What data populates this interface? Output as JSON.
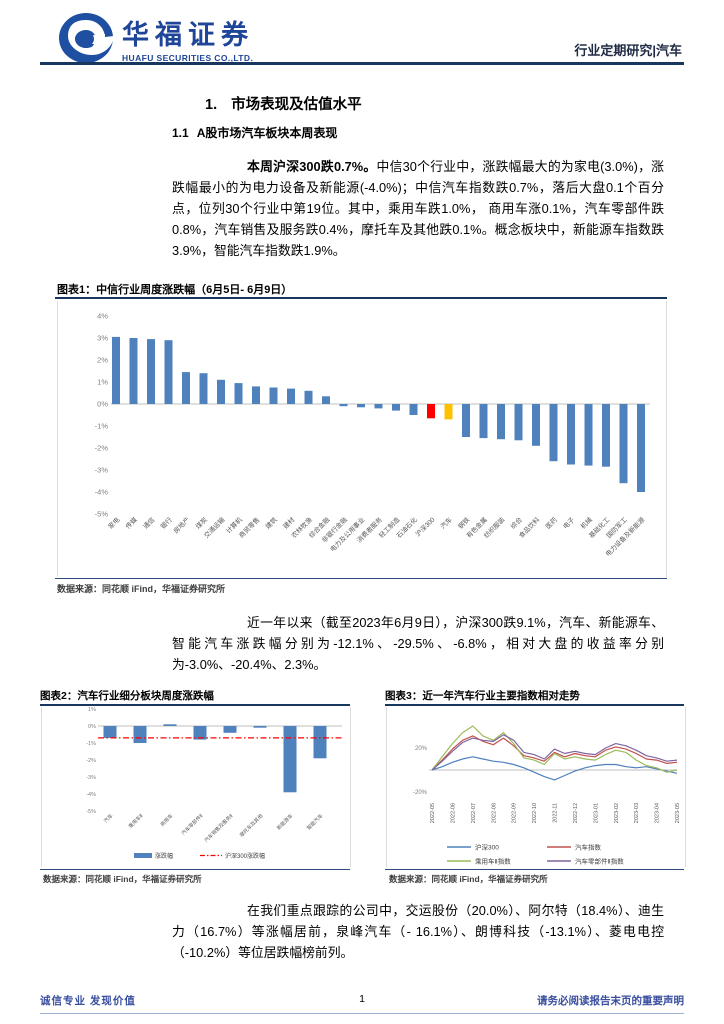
{
  "header": {
    "logo_title": "华福证券",
    "logo_subtitle": "HUAFU SECURITIES CO.,LTD.",
    "right_text": "行业定期研究|汽车"
  },
  "headings": {
    "h1_num": "1.",
    "h1_text": "市场表现及估值水平",
    "h2_num": "1.1",
    "h2_text": "A股市场汽车板块本周表现"
  },
  "paragraphs": {
    "p1_bold": "本周沪深300跌0.7%。",
    "p1_rest": "中信30个行业中，涨跌幅最大的为家电(3.0%)，涨跌幅最小的为电力设备及新能源(-4.0%)；中信汽车指数跌0.7%，落后大盘0.1个百分点，位列30个行业中第19位。其中，乘用车跌1.0%， 商用车涨0.1%，汽车零部件跌0.8%，汽车销售及服务跌0.4%，摩托车及其他跌0.1%。概念板块中，新能源车指数跌3.9%，智能汽车指数跌1.9%。",
    "p2": "近一年以来（截至2023年6月9日），沪深300跌9.1%，汽车、新能源车、智能汽车涨跌幅分别为-12.1%、-29.5%、-6.8%，相对大盘的收益率分别为-3.0%、-20.4%、2.3%。",
    "p3": "在我们重点跟踪的公司中，交运股份（20.0%）、阿尔特（18.4%）、迪生力（16.7%）等涨幅居前，泉峰汽车（- 16.1%）、朗博科技（-13.1%）、菱电电控（-10.2%）等位居跌幅榜前列。"
  },
  "figure1": {
    "title": "图表1：中信行业周度涨跌幅（6月5日- 6月9日）",
    "source": "数据来源：同花顺 iFind，华福证券研究所"
  },
  "figure2": {
    "title": "图表2：汽车行业细分板块周度涨跌幅",
    "source": "数据来源：同花顺 iFind，华福证券研究所"
  },
  "figure3": {
    "title": "图表3：近一年汽车行业主要指数相对走势",
    "source": "数据来源：同花顺 iFind，华福证券研究所"
  },
  "footer": {
    "left": "诚信专业  发现价值",
    "page": "1",
    "right": "请务必阅读报告末页的重要声明"
  },
  "chart_data": [
    {
      "type": "bar",
      "title": "中信行业周度涨跌幅（6月5日- 6月9日）",
      "categories": [
        "家电",
        "传媒",
        "通信",
        "银行",
        "房地产",
        "煤炭",
        "交通运输",
        "计算机",
        "商贸零售",
        "建筑",
        "建材",
        "农林牧渔",
        "综合金融",
        "非银行金融",
        "电力及公用事业",
        "消费者服务",
        "轻工制造",
        "石油石化",
        "沪深300",
        "汽车",
        "钢铁",
        "有色金属",
        "纺织服装",
        "综合",
        "食品饮料",
        "医药",
        "电子",
        "机械",
        "基础化工",
        "国防军工",
        "电力设备及新能源"
      ],
      "values": [
        3.05,
        3.0,
        2.95,
        2.9,
        1.45,
        1.4,
        1.1,
        0.95,
        0.8,
        0.75,
        0.7,
        0.6,
        0.35,
        -0.1,
        -0.15,
        -0.2,
        -0.3,
        -0.5,
        -0.65,
        -0.7,
        -1.5,
        -1.55,
        -1.6,
        -1.65,
        -1.9,
        -2.6,
        -2.75,
        -2.8,
        -2.85,
        -3.6,
        -4.0
      ],
      "bar_color": "#4F81BD",
      "highlights": [
        {
          "index": 18,
          "color": "#FF0000",
          "category": "沪深300"
        },
        {
          "index": 19,
          "color": "#FFC000",
          "category": "汽车"
        }
      ],
      "yticks": [
        "4%",
        "3%",
        "2%",
        "1%",
        "0%",
        "-1%",
        "-2%",
        "-3%",
        "-4%",
        "-5%"
      ],
      "ylim": [
        -5,
        4
      ],
      "grid": false,
      "legend_position": "none"
    },
    {
      "type": "bar",
      "title": "汽车行业细分板块周度涨跌幅",
      "categories": [
        "汽车",
        "乘用车Ⅱ",
        "商用车",
        "汽车零部件Ⅱ",
        "汽车销售及服务Ⅱ",
        "摩托车及其他",
        "新能源车",
        "智能汽车"
      ],
      "values": [
        -0.7,
        -1.0,
        0.1,
        -0.8,
        -0.4,
        -0.1,
        -3.9,
        -1.9
      ],
      "bar_color": "#4F81BD",
      "reference_line": {
        "label": "沪深300涨跌幅",
        "value": -0.7,
        "color": "#FF0000",
        "style": "dash-dot"
      },
      "legend": [
        "涨跌幅",
        "沪深300涨跌幅"
      ],
      "yticks": [
        "1%",
        "0%",
        "-1%",
        "-2%",
        "-3%",
        "-4%",
        "-5%"
      ],
      "ylim": [
        -5,
        1
      ],
      "grid": false,
      "legend_position": "bottom"
    },
    {
      "type": "line",
      "title": "近一年汽车行业主要指数相对走势",
      "x": [
        "2022-05",
        "2022-06",
        "2022-07",
        "2022-08",
        "2022-09",
        "2022-10",
        "2022-11",
        "2022-12",
        "2023-01",
        "2023-02",
        "2023-03",
        "2023-04",
        "2023-05"
      ],
      "series": [
        {
          "name": "沪深300",
          "color": "#4F81BD",
          "values": [
            0,
            3,
            7,
            10,
            12,
            10,
            8,
            7,
            5,
            2,
            -2,
            -6,
            -9,
            -5,
            -1,
            2,
            4,
            5,
            5,
            3,
            2,
            3,
            1,
            -1,
            -3
          ]
        },
        {
          "name": "汽车指数",
          "color": "#C0504D",
          "values": [
            0,
            9,
            19,
            27,
            31,
            26,
            23,
            29,
            22,
            13,
            11,
            8,
            16,
            12,
            15,
            13,
            12,
            18,
            21,
            19,
            15,
            10,
            9,
            6,
            7
          ]
        },
        {
          "name": "乘用车Ⅱ指数",
          "color": "#9BBB59",
          "values": [
            0,
            12,
            24,
            34,
            40,
            31,
            27,
            34,
            24,
            11,
            9,
            5,
            15,
            10,
            12,
            10,
            9,
            14,
            18,
            16,
            9,
            4,
            2,
            -2,
            0
          ]
        },
        {
          "name": "汽车零部件Ⅱ指数",
          "color": "#8064A2",
          "values": [
            0,
            8,
            17,
            25,
            29,
            27,
            26,
            32,
            27,
            16,
            14,
            10,
            19,
            15,
            17,
            15,
            14,
            20,
            24,
            22,
            18,
            13,
            11,
            8,
            9
          ]
        }
      ],
      "yticks": [
        {
          "label": "20%",
          "value": 20
        },
        {
          "label": "-20%",
          "value": -20
        }
      ],
      "ylim": [
        -25,
        45
      ],
      "grid": false,
      "legend_position": "bottom"
    }
  ]
}
